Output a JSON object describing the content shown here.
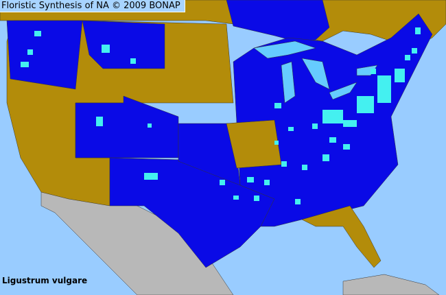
{
  "header": {
    "title": "Floristic Synthesis of NA © 2009 BONAP"
  },
  "map": {
    "species": "Ligustrum vulgare",
    "colors": {
      "ocean": "#99ccff",
      "present_state": "#0a0ae6",
      "absent_state": "#b38c0a",
      "county_record": "#44f0f0",
      "outside_area": "#b8b8b8",
      "county_borders": "#333333"
    }
  }
}
